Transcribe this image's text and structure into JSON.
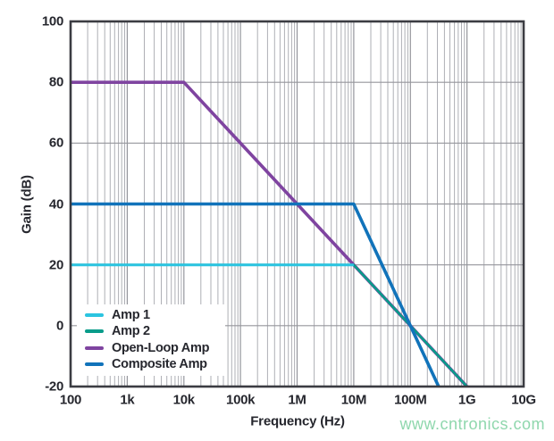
{
  "chart_data": {
    "type": "line",
    "title": "",
    "xlabel": "Frequency (Hz)",
    "ylabel": "Gain (dB)",
    "x_scale": "log",
    "xlim_log": [
      2,
      10
    ],
    "ylim": [
      -20,
      100
    ],
    "grid": "on",
    "legend_position": "bottom-left",
    "x_ticks": [
      {
        "log": 2,
        "label": "100"
      },
      {
        "log": 3,
        "label": "1k"
      },
      {
        "log": 4,
        "label": "10k"
      },
      {
        "log": 5,
        "label": "100k"
      },
      {
        "log": 6,
        "label": "1M"
      },
      {
        "log": 7,
        "label": "10M"
      },
      {
        "log": 8,
        "label": "100M"
      },
      {
        "log": 9,
        "label": "1G"
      },
      {
        "log": 10,
        "label": "10G"
      }
    ],
    "y_ticks": [
      100,
      80,
      60,
      40,
      20,
      0,
      -20
    ],
    "series": [
      {
        "name": "Amp 1",
        "color": "#2bc4e0",
        "width": 3,
        "points_log_db": [
          [
            2,
            20
          ],
          [
            7,
            20
          ]
        ]
      },
      {
        "name": "Amp 2",
        "color": "#089c8a",
        "width": 2.6,
        "points_log_db": [
          [
            2,
            20
          ],
          [
            7,
            20
          ],
          [
            9,
            -20
          ]
        ]
      },
      {
        "name": "Open-Loop Amp",
        "color": "#7f44a0",
        "width": 3.6,
        "points_log_db": [
          [
            2,
            80
          ],
          [
            4,
            80
          ],
          [
            9,
            -20
          ]
        ]
      },
      {
        "name": "Composite Amp",
        "color": "#1173ba",
        "width": 3.6,
        "points_log_db": [
          [
            2,
            40
          ],
          [
            7,
            40
          ],
          [
            8.5,
            -20
          ]
        ]
      }
    ],
    "draw_order": [
      2,
      1,
      0,
      3
    ],
    "style": {
      "frame": "#3b3c42",
      "grid_major": "#95969c",
      "grid_minor": "#aeafb5",
      "text": "#26272e"
    }
  },
  "watermark": {
    "text": "www.cntronics.com",
    "color": "#8fd7ad"
  }
}
